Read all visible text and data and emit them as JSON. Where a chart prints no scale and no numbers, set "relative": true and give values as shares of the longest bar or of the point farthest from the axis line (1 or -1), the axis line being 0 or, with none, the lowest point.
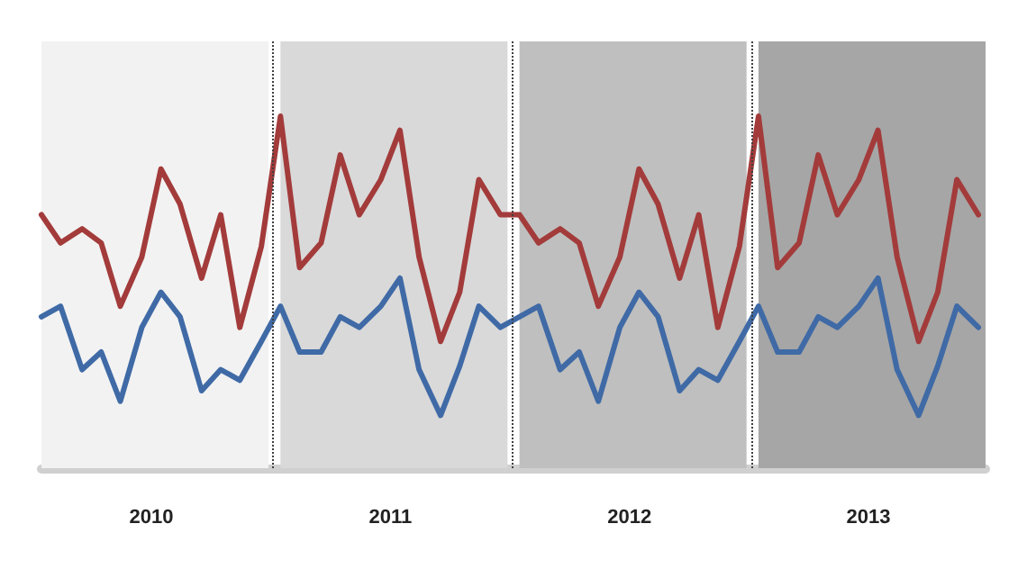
{
  "chart_data": {
    "type": "line",
    "relative": true,
    "x": [
      2010.0,
      2010.08,
      2010.17,
      2010.25,
      2010.33,
      2010.42,
      2010.5,
      2010.58,
      2010.67,
      2010.75,
      2010.83,
      2010.92,
      2011.0,
      2011.08,
      2011.17,
      2011.25,
      2011.33,
      2011.42,
      2011.5,
      2011.58,
      2011.67,
      2011.75,
      2011.83,
      2011.92,
      2012.0,
      2012.08,
      2012.17,
      2012.25,
      2012.33,
      2012.42,
      2012.5,
      2012.58,
      2012.67,
      2012.75,
      2012.83,
      2012.92,
      2013.0,
      2013.08,
      2013.17,
      2013.25,
      2013.33,
      2013.42,
      2013.5,
      2013.58,
      2013.67,
      2013.75,
      2013.83,
      2013.92
    ],
    "xlim": [
      2010,
      2013.95
    ],
    "xticks": [
      {
        "value": 2010.46,
        "label": "2010"
      },
      {
        "value": 2011.46,
        "label": "2011"
      },
      {
        "value": 2012.46,
        "label": "2012"
      },
      {
        "value": 2013.46,
        "label": "2013"
      }
    ],
    "series": [
      {
        "color": "#a33b3b",
        "values": [
          0.72,
          0.64,
          0.68,
          0.64,
          0.46,
          0.6,
          0.85,
          0.75,
          0.54,
          0.72,
          0.4,
          0.63,
          1.0,
          0.57,
          0.64,
          0.89,
          0.72,
          0.82,
          0.96,
          0.6,
          0.36,
          0.5,
          0.82,
          0.72,
          0.72,
          0.64,
          0.68,
          0.64,
          0.46,
          0.6,
          0.85,
          0.75,
          0.54,
          0.72,
          0.4,
          0.63,
          1.0,
          0.57,
          0.64,
          0.89,
          0.72,
          0.82,
          0.96,
          0.6,
          0.36,
          0.5,
          0.82,
          0.72
        ]
      },
      {
        "color": "#3f6aa6",
        "values": [
          0.43,
          0.46,
          0.28,
          0.33,
          0.19,
          0.4,
          0.5,
          0.43,
          0.22,
          0.28,
          0.25,
          0.36,
          0.46,
          0.33,
          0.33,
          0.43,
          0.4,
          0.46,
          0.54,
          0.28,
          0.15,
          0.29,
          0.46,
          0.4,
          0.43,
          0.46,
          0.28,
          0.33,
          0.19,
          0.4,
          0.5,
          0.43,
          0.22,
          0.28,
          0.25,
          0.36,
          0.46,
          0.33,
          0.33,
          0.43,
          0.4,
          0.46,
          0.54,
          0.28,
          0.15,
          0.29,
          0.46,
          0.4
        ]
      }
    ],
    "bands": [
      {
        "axis": "x",
        "from": 2010,
        "to": 2010.95,
        "color": "#f2f2f2"
      },
      {
        "axis": "x",
        "from": 2011,
        "to": 2011.95,
        "color": "#d9d9d9"
      },
      {
        "axis": "x",
        "from": 2012,
        "to": 2012.95,
        "color": "#bfbfbf"
      },
      {
        "axis": "x",
        "from": 2013,
        "to": 2013.95,
        "color": "#a6a6a6"
      }
    ],
    "ref_lines": [
      {
        "axis": "x",
        "value": 2010.97,
        "color": "#404040",
        "line_style": "dotted"
      },
      {
        "axis": "x",
        "value": 2011.97,
        "color": "#404040",
        "line_style": "dotted"
      },
      {
        "axis": "x",
        "value": 2012.97,
        "color": "#404040",
        "line_style": "dotted"
      }
    ],
    "tick_labels": "x",
    "marker": "none",
    "line_style": "solid"
  }
}
